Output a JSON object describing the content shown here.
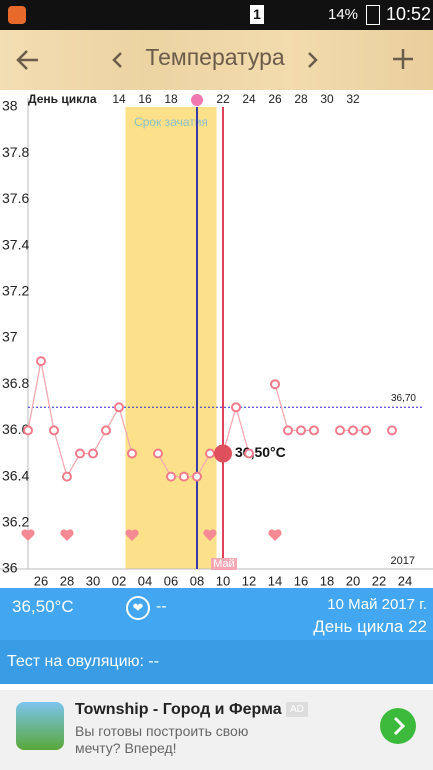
{
  "status_bar": {
    "sim": "1",
    "battery": "14%",
    "time": "10:52"
  },
  "app_bar": {
    "title": "Температура"
  },
  "chart_data": {
    "type": "line",
    "top_axis_label": "День цикла",
    "categories": [
      null,
      "26",
      null,
      "28",
      null,
      "30",
      null,
      "02",
      null,
      "04",
      null,
      "06",
      null,
      "08",
      null,
      "10",
      null,
      "12",
      null,
      "14",
      null,
      "16",
      null,
      "18",
      null,
      "20",
      null,
      "22",
      null,
      "24"
    ],
    "top_categories": [
      null,
      null,
      null,
      null,
      null,
      null,
      null,
      "14",
      null,
      "16",
      null,
      "18",
      null,
      null,
      null,
      "22",
      null,
      "24",
      null,
      "26",
      null,
      "28",
      null,
      "30",
      null,
      "32",
      null,
      null,
      null,
      null
    ],
    "values": [
      36.6,
      36.9,
      36.6,
      36.4,
      36.5,
      36.5,
      36.6,
      36.7,
      36.5,
      null,
      36.5,
      36.4,
      36.4,
      36.4,
      36.5,
      36.5,
      36.7,
      36.5,
      null,
      36.8,
      36.6,
      36.6,
      36.6,
      null,
      36.6,
      36.6,
      36.6,
      null,
      36.6,
      null
    ],
    "value_labels": [
      null,
      null,
      null,
      null,
      null,
      null,
      null,
      null,
      null,
      null,
      null,
      null,
      null,
      null,
      null,
      "36,50°C",
      null,
      null,
      null,
      null,
      null,
      null,
      null,
      null,
      null,
      null,
      null,
      null,
      null,
      null
    ],
    "color": "#f27a8a",
    "hearts": [
      true,
      false,
      false,
      true,
      false,
      false,
      false,
      false,
      true,
      false,
      false,
      false,
      false,
      false,
      true,
      false,
      false,
      false,
      false,
      true,
      false,
      false,
      false,
      false,
      false,
      false,
      false,
      false,
      false,
      false
    ],
    "band": {
      "label": "Срок зачатия",
      "start": 7.5,
      "end": 14.5,
      "color": "#fde08a"
    },
    "vlines": [
      {
        "index": 13,
        "color": "#3a3aa8"
      },
      {
        "index": 15,
        "color": "#e0405a"
      }
    ],
    "reference_line": {
      "value": 36.7,
      "label": "36,70"
    },
    "month_label": "Май",
    "year_label": "2017",
    "ylim": [
      36,
      38
    ],
    "yticks": [
      36,
      36.2,
      36.4,
      36.6,
      36.8,
      37,
      37.2,
      37.4,
      37.6,
      37.8,
      38
    ],
    "grid": false
  },
  "info": {
    "temperature": "36,50°C",
    "note": "--",
    "date": "10 Май 2017 г.",
    "cycle_day": "День цикла 22"
  },
  "ovulation_test": "Тест на овуляцию: --",
  "ad": {
    "title": "Township - Город и Ферма",
    "badge": "AD",
    "text": "Вы готовы построить свою мечту? Вперед!"
  }
}
